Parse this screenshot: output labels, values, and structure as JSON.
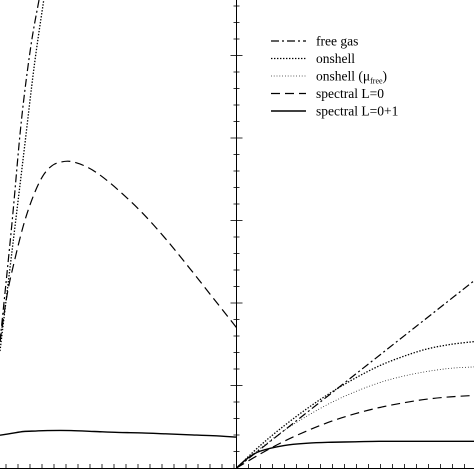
{
  "chart_data": [
    {
      "type": "line",
      "panel": "left",
      "title": "",
      "xlabel": "",
      "ylabel": "",
      "xlim": [
        0,
        1
      ],
      "ylim": [
        0,
        1
      ],
      "grid": false,
      "legend": "none",
      "series": [
        {
          "style": "dashdot",
          "x": [
            0.0,
            0.05,
            0.09,
            0.13,
            0.165
          ],
          "y": [
            0.27,
            0.52,
            0.74,
            0.9,
            1.0
          ]
        },
        {
          "style": "dotted",
          "x": [
            0.0,
            0.05,
            0.1,
            0.145,
            0.185
          ],
          "y": [
            0.25,
            0.46,
            0.67,
            0.86,
            1.0
          ]
        },
        {
          "style": "dashed",
          "x": [
            0.0,
            0.03,
            0.06,
            0.1,
            0.14,
            0.18,
            0.22,
            0.26,
            0.3,
            0.36,
            0.42,
            0.5,
            0.6,
            0.7,
            0.8,
            0.9,
            1.0
          ],
          "y": [
            0.27,
            0.37,
            0.44,
            0.52,
            0.58,
            0.623,
            0.646,
            0.654,
            0.655,
            0.645,
            0.627,
            0.594,
            0.546,
            0.49,
            0.428,
            0.364,
            0.3
          ]
        },
        {
          "style": "solid",
          "x": [
            0.0,
            0.05,
            0.1,
            0.15,
            0.2,
            0.3,
            0.4,
            0.5,
            0.6,
            0.7,
            0.8,
            0.9,
            1.0
          ],
          "y": [
            0.07,
            0.074,
            0.078,
            0.079,
            0.08,
            0.08,
            0.078,
            0.076,
            0.075,
            0.073,
            0.071,
            0.069,
            0.066
          ]
        }
      ]
    },
    {
      "type": "line",
      "panel": "right",
      "title": "",
      "xlabel": "",
      "ylabel": "",
      "xlim": [
        0,
        1
      ],
      "ylim": [
        0,
        1
      ],
      "grid": false,
      "legend": "top-right",
      "series": [
        {
          "name": "free gas",
          "style": "dashdot",
          "x": [
            0.0,
            0.25,
            0.5,
            0.75,
            1.0
          ],
          "y": [
            0.0,
            0.1,
            0.2,
            0.3,
            0.4
          ]
        },
        {
          "name": "onshell",
          "style": "dotted",
          "x": [
            0.0,
            0.1,
            0.2,
            0.3,
            0.4,
            0.5,
            0.6,
            0.7,
            0.8,
            0.9,
            1.0
          ],
          "y": [
            0.0,
            0.048,
            0.09,
            0.128,
            0.162,
            0.192,
            0.218,
            0.238,
            0.254,
            0.264,
            0.27
          ]
        },
        {
          "name": "onshell (μfree)",
          "style": "fine-dotted",
          "x": [
            0.0,
            0.1,
            0.2,
            0.3,
            0.4,
            0.5,
            0.6,
            0.7,
            0.8,
            0.9,
            1.0
          ],
          "y": [
            0.0,
            0.042,
            0.08,
            0.112,
            0.14,
            0.163,
            0.182,
            0.196,
            0.206,
            0.213,
            0.216
          ]
        },
        {
          "name": "spectral L=0",
          "style": "dashed",
          "x": [
            0.0,
            0.1,
            0.2,
            0.3,
            0.4,
            0.5,
            0.6,
            0.7,
            0.8,
            0.9,
            1.0
          ],
          "y": [
            0.0,
            0.03,
            0.057,
            0.08,
            0.1,
            0.116,
            0.129,
            0.139,
            0.147,
            0.152,
            0.155
          ]
        },
        {
          "name": "spectral L=0+1",
          "style": "solid",
          "x": [
            0.0,
            0.05,
            0.1,
            0.2,
            0.3,
            0.4,
            0.5,
            0.6,
            0.7,
            0.8,
            0.9,
            1.0
          ],
          "y": [
            0.0,
            0.022,
            0.036,
            0.048,
            0.053,
            0.055,
            0.056,
            0.057,
            0.057,
            0.057,
            0.057,
            0.057
          ]
        }
      ]
    }
  ],
  "legend": {
    "items": [
      {
        "label": "free gas",
        "style": "dashdot"
      },
      {
        "label": "onshell",
        "style": "dotted"
      },
      {
        "label": "onshell   (μ",
        "sub": "free",
        "close": ")",
        "style": "fine-dotted"
      },
      {
        "label": "spectral L=0",
        "style": "dashed"
      },
      {
        "label": "spectral L=0+1",
        "style": "solid"
      }
    ]
  },
  "colors": {
    "line": "#000000",
    "background": "#ffffff"
  }
}
